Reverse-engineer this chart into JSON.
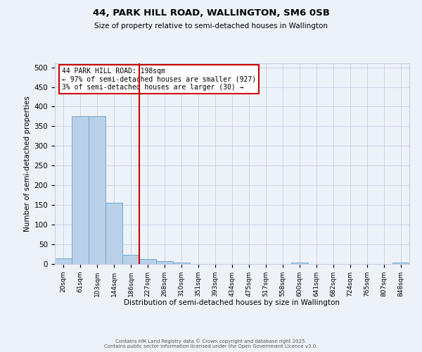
{
  "title_line1": "44, PARK HILL ROAD, WALLINGTON, SM6 0SB",
  "title_line2": "Size of property relative to semi-detached houses in Wallington",
  "xlabel": "Distribution of semi-detached houses by size in Wallington",
  "ylabel": "Number of semi-detached properties",
  "categories": [
    "20sqm",
    "61sqm",
    "103sqm",
    "144sqm",
    "186sqm",
    "227sqm",
    "268sqm",
    "310sqm",
    "351sqm",
    "393sqm",
    "434sqm",
    "475sqm",
    "517sqm",
    "558sqm",
    "600sqm",
    "641sqm",
    "682sqm",
    "724sqm",
    "765sqm",
    "807sqm",
    "848sqm"
  ],
  "values": [
    15,
    375,
    375,
    155,
    23,
    13,
    8,
    3,
    0,
    0,
    0,
    0,
    0,
    0,
    4,
    0,
    0,
    0,
    0,
    0,
    4
  ],
  "bar_color": "#b8d0e8",
  "bar_edge_color": "#6aaad4",
  "property_line_x": 4.5,
  "annotation_text": "44 PARK HILL ROAD: 198sqm\n← 97% of semi-detached houses are smaller (927)\n3% of semi-detached houses are larger (30) →",
  "annotation_box_color": "#ffffff",
  "annotation_box_edge": "#cc0000",
  "line_color": "#cc0000",
  "footer_line1": "Contains HM Land Registry data © Crown copyright and database right 2025.",
  "footer_line2": "Contains public sector information licensed under the Open Government Licence v3.0.",
  "background_color": "#edf2f9",
  "ylim": [
    0,
    510
  ],
  "yticks": [
    0,
    50,
    100,
    150,
    200,
    250,
    300,
    350,
    400,
    450,
    500
  ]
}
